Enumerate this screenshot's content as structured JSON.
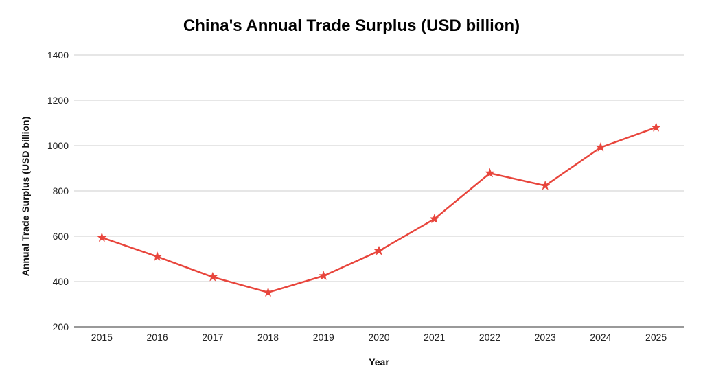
{
  "chart_data": {
    "type": "line",
    "title": "China's Annual Trade Surplus (USD billion)",
    "xlabel": "Year",
    "ylabel": "Annual Trade Surplus (USD billion)",
    "categories": [
      "2015",
      "2016",
      "2017",
      "2018",
      "2019",
      "2020",
      "2021",
      "2022",
      "2023",
      "2024",
      "2025"
    ],
    "series": [
      {
        "values": [
          594,
          510,
          420,
          352,
          425,
          535,
          676,
          878,
          823,
          992,
          1080
        ],
        "color": "#e8453c",
        "marker": "star"
      }
    ],
    "ylim": [
      200,
      1400
    ],
    "yticks": [
      200,
      400,
      600,
      800,
      1000,
      1200,
      1400
    ],
    "grid": true,
    "legend": "none"
  }
}
